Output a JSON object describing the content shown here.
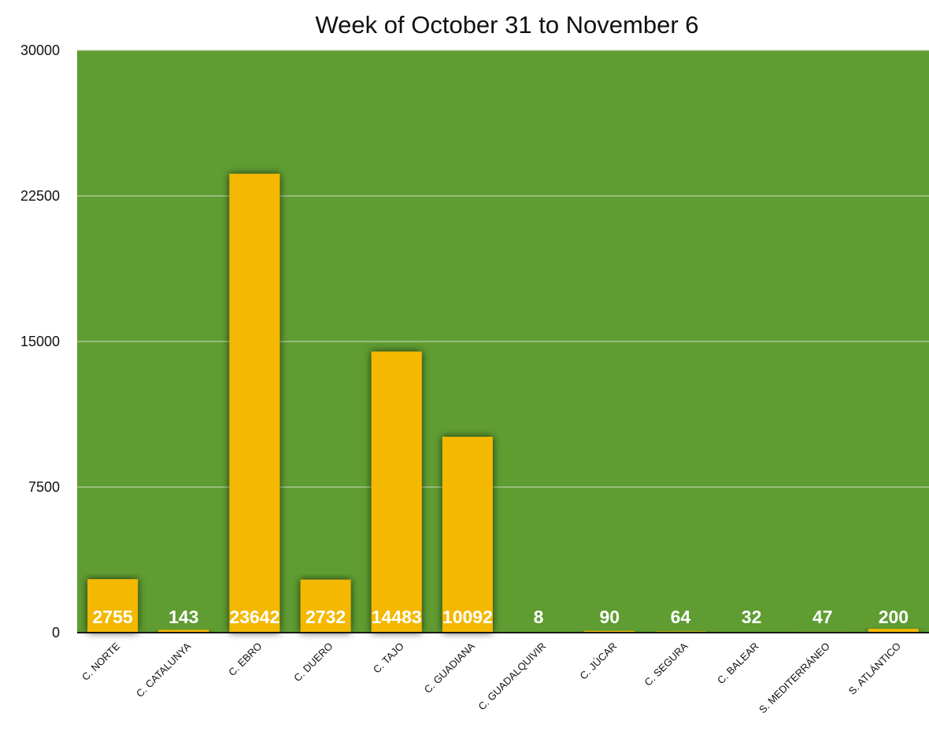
{
  "chart_data": {
    "type": "bar",
    "title": "Week of October 31 to November 6",
    "xlabel": "",
    "ylabel": "",
    "categories": [
      "C. NORTE",
      "C. CATALUNYA",
      "C. EBRO",
      "C. DUERO",
      "C. TAJO",
      "C. GUADIANA",
      "C. GUADALQUIVIR",
      "C. JÚCAR",
      "C. SEGURA",
      "C. BALEAR",
      "S. MEDITERRÁNEO",
      "S. ATLÁNTICO"
    ],
    "values": [
      2755,
      143,
      23642,
      2732,
      14483,
      10092,
      8,
      90,
      64,
      32,
      47,
      200
    ],
    "ylim": [
      0,
      30000
    ],
    "yticks": [
      0,
      7500,
      15000,
      22500,
      30000
    ],
    "grid": true,
    "legend": "none",
    "colors": {
      "plot_background": "#5f9c31",
      "bar": "#f4b800",
      "gridline": "#b8d2a6",
      "data_label": "#ffffff"
    }
  }
}
